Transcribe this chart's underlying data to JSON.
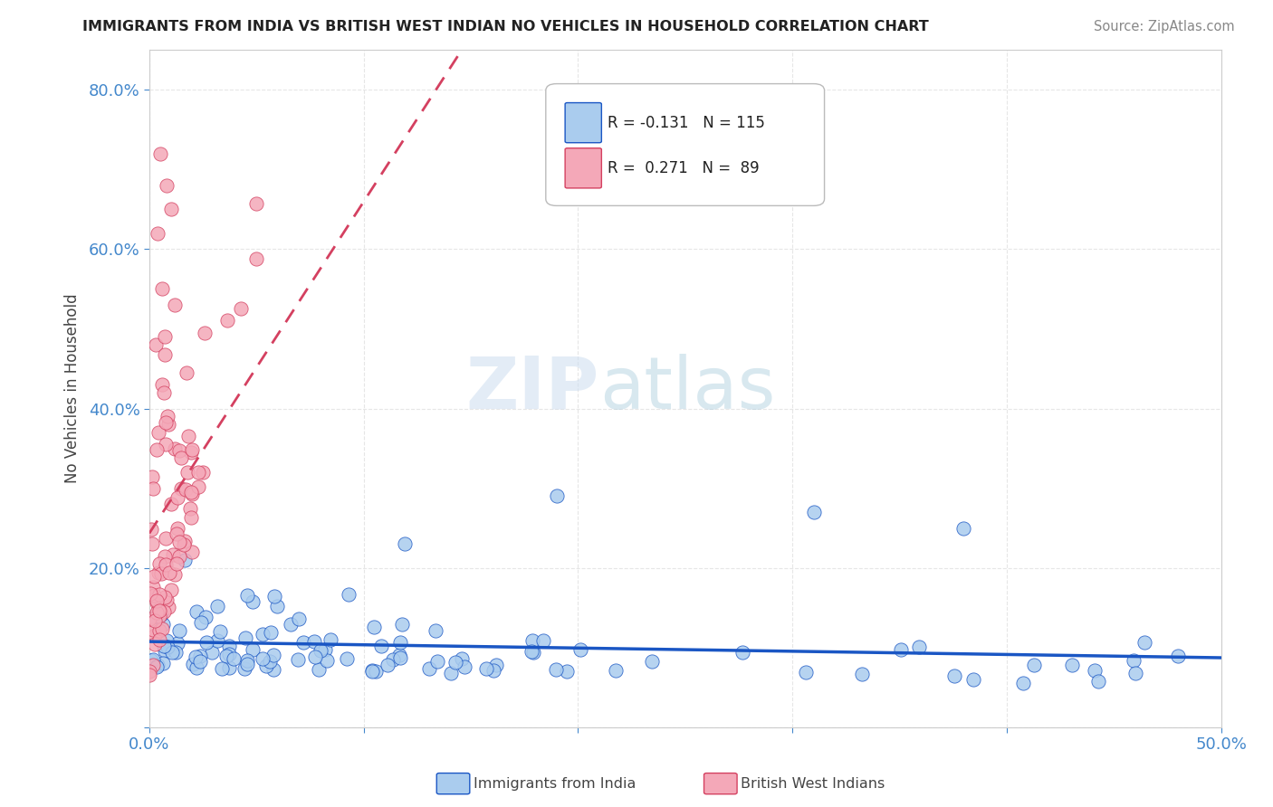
{
  "title": "IMMIGRANTS FROM INDIA VS BRITISH WEST INDIAN NO VEHICLES IN HOUSEHOLD CORRELATION CHART",
  "source": "Source: ZipAtlas.com",
  "ylabel": "No Vehicles in Household",
  "xlim": [
    0.0,
    0.5
  ],
  "ylim": [
    0.0,
    0.85
  ],
  "xtick_positions": [
    0.0,
    0.1,
    0.2,
    0.3,
    0.4,
    0.5
  ],
  "xtick_labels": [
    "0.0%",
    "",
    "",
    "",
    "",
    "50.0%"
  ],
  "ytick_positions": [
    0.0,
    0.2,
    0.4,
    0.6,
    0.8
  ],
  "ytick_labels": [
    "",
    "20.0%",
    "40.0%",
    "60.0%",
    "80.0%"
  ],
  "color_india": "#aaccee",
  "color_bwi": "#f4a8b8",
  "line_color_india": "#1a56c4",
  "line_color_bwi": "#d44060",
  "R_india": -0.131,
  "N_india": 115,
  "R_bwi": 0.271,
  "N_bwi": 89,
  "watermark_zip": "ZIP",
  "watermark_atlas": "atlas",
  "background_color": "#ffffff",
  "grid_color": "#e0e0e0",
  "tick_color": "#4488cc",
  "title_color": "#222222",
  "source_color": "#888888",
  "ylabel_color": "#444444"
}
